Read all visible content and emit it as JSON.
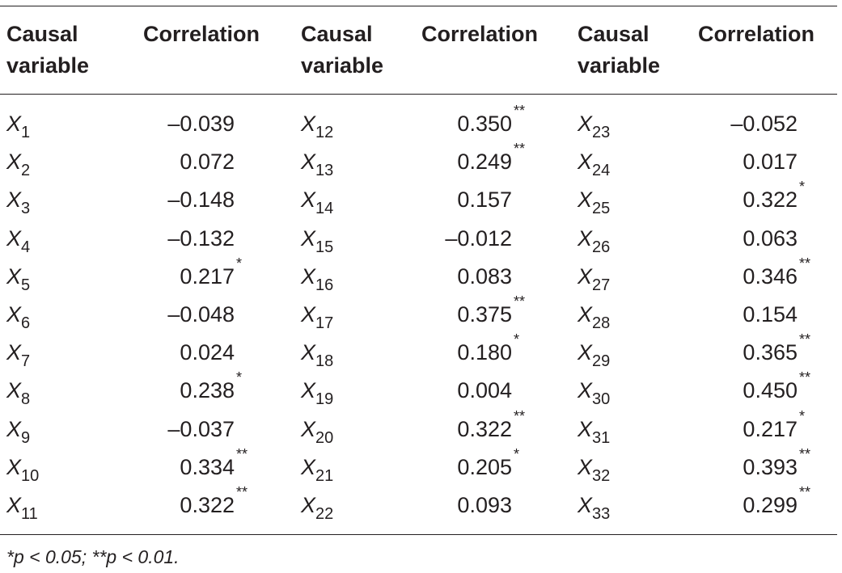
{
  "table": {
    "headers": [
      {
        "causal": [
          "Causal",
          "variable"
        ],
        "correlation": "Correlation"
      },
      {
        "causal": [
          "Causal",
          "variable"
        ],
        "correlation": "Correlation"
      },
      {
        "causal": [
          "Causal",
          "variable"
        ],
        "correlation": "Correlation"
      }
    ],
    "rows": [
      [
        {
          "var": "X",
          "sub": "1",
          "val": "–0.039",
          "sig": ""
        },
        {
          "var": "X",
          "sub": "12",
          "val": "0.350",
          "sig": "**"
        },
        {
          "var": "X",
          "sub": "23",
          "val": "–0.052",
          "sig": ""
        }
      ],
      [
        {
          "var": "X",
          "sub": "2",
          "val": "0.072",
          "sig": ""
        },
        {
          "var": "X",
          "sub": "13",
          "val": "0.249",
          "sig": "**"
        },
        {
          "var": "X",
          "sub": "24",
          "val": "0.017",
          "sig": ""
        }
      ],
      [
        {
          "var": "X",
          "sub": "3",
          "val": "–0.148",
          "sig": ""
        },
        {
          "var": "X",
          "sub": "14",
          "val": "0.157",
          "sig": ""
        },
        {
          "var": "X",
          "sub": "25",
          "val": "0.322",
          "sig": "*"
        }
      ],
      [
        {
          "var": "X",
          "sub": "4",
          "val": "–0.132",
          "sig": ""
        },
        {
          "var": "X",
          "sub": "15",
          "val": "–0.012",
          "sig": ""
        },
        {
          "var": "X",
          "sub": "26",
          "val": "0.063",
          "sig": ""
        }
      ],
      [
        {
          "var": "X",
          "sub": "5",
          "val": "0.217",
          "sig": "*"
        },
        {
          "var": "X",
          "sub": "16",
          "val": "0.083",
          "sig": ""
        },
        {
          "var": "X",
          "sub": "27",
          "val": "0.346",
          "sig": "**"
        }
      ],
      [
        {
          "var": "X",
          "sub": "6",
          "val": "–0.048",
          "sig": ""
        },
        {
          "var": "X",
          "sub": "17",
          "val": "0.375",
          "sig": "**"
        },
        {
          "var": "X",
          "sub": "28",
          "val": "0.154",
          "sig": ""
        }
      ],
      [
        {
          "var": "X",
          "sub": "7",
          "val": "0.024",
          "sig": ""
        },
        {
          "var": "X",
          "sub": "18",
          "val": "0.180",
          "sig": "*"
        },
        {
          "var": "X",
          "sub": "29",
          "val": "0.365",
          "sig": "**"
        }
      ],
      [
        {
          "var": "X",
          "sub": "8",
          "val": "0.238",
          "sig": "*"
        },
        {
          "var": "X",
          "sub": "19",
          "val": "0.004",
          "sig": ""
        },
        {
          "var": "X",
          "sub": "30",
          "val": "0.450",
          "sig": "**"
        }
      ],
      [
        {
          "var": "X",
          "sub": "9",
          "val": "–0.037",
          "sig": ""
        },
        {
          "var": "X",
          "sub": "20",
          "val": "0.322",
          "sig": "**"
        },
        {
          "var": "X",
          "sub": "31",
          "val": "0.217",
          "sig": "*"
        }
      ],
      [
        {
          "var": "X",
          "sub": "10",
          "val": "0.334",
          "sig": "**"
        },
        {
          "var": "X",
          "sub": "21",
          "val": "0.205",
          "sig": "*"
        },
        {
          "var": "X",
          "sub": "32",
          "val": "0.393",
          "sig": "**"
        }
      ],
      [
        {
          "var": "X",
          "sub": "11",
          "val": "0.322",
          "sig": "**"
        },
        {
          "var": "X",
          "sub": "22",
          "val": "0.093",
          "sig": ""
        },
        {
          "var": "X",
          "sub": "33",
          "val": "0.299",
          "sig": "**"
        }
      ]
    ]
  },
  "footnote": "*p < 0.05; **p < 0.01."
}
